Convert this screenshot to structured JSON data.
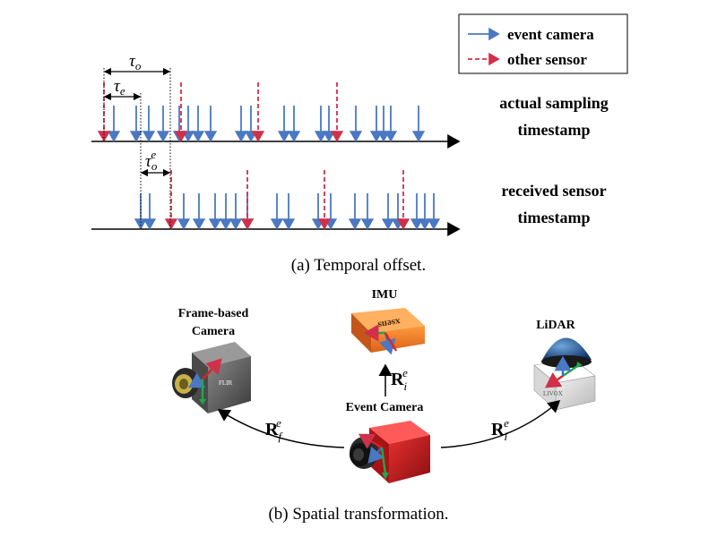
{
  "legend": {
    "event_label": "event camera",
    "other_label": "other sensor"
  },
  "timeline_labels": {
    "actual_line1": "actual sampling",
    "actual_line2": "timestamp",
    "received_line1": "received sensor",
    "received_line2": "timestamp"
  },
  "offsets": {
    "tau_o_sym": "τ",
    "tau_o_sub": "o",
    "tau_e_sym": "τ",
    "tau_e_sub": "e",
    "tau_oe_sym": "τ",
    "tau_oe_sub": "o",
    "tau_oe_sup": "e"
  },
  "captions": {
    "a": "(a) Temporal offset.",
    "b": "(b) Spatial transformation."
  },
  "sensors": {
    "frame_line1": "Frame-based",
    "frame_line2": "Camera",
    "imu": "IMU",
    "lidar": "LiDAR",
    "event": "Event Camera",
    "imu_brand": "xsens",
    "lidar_brand": "LIVOX",
    "flir_brand": "FLIR"
  },
  "transforms": {
    "rf_base": "R",
    "rf_sub": "f",
    "rf_sup": "e",
    "ri_base": "R",
    "ri_sub": "i",
    "ri_sup": "e",
    "rl_base": "R",
    "rl_sub": "l",
    "rl_sup": "e"
  },
  "colors": {
    "event": "#4a78c2",
    "other": "#d0304a",
    "axis": "#000000"
  }
}
